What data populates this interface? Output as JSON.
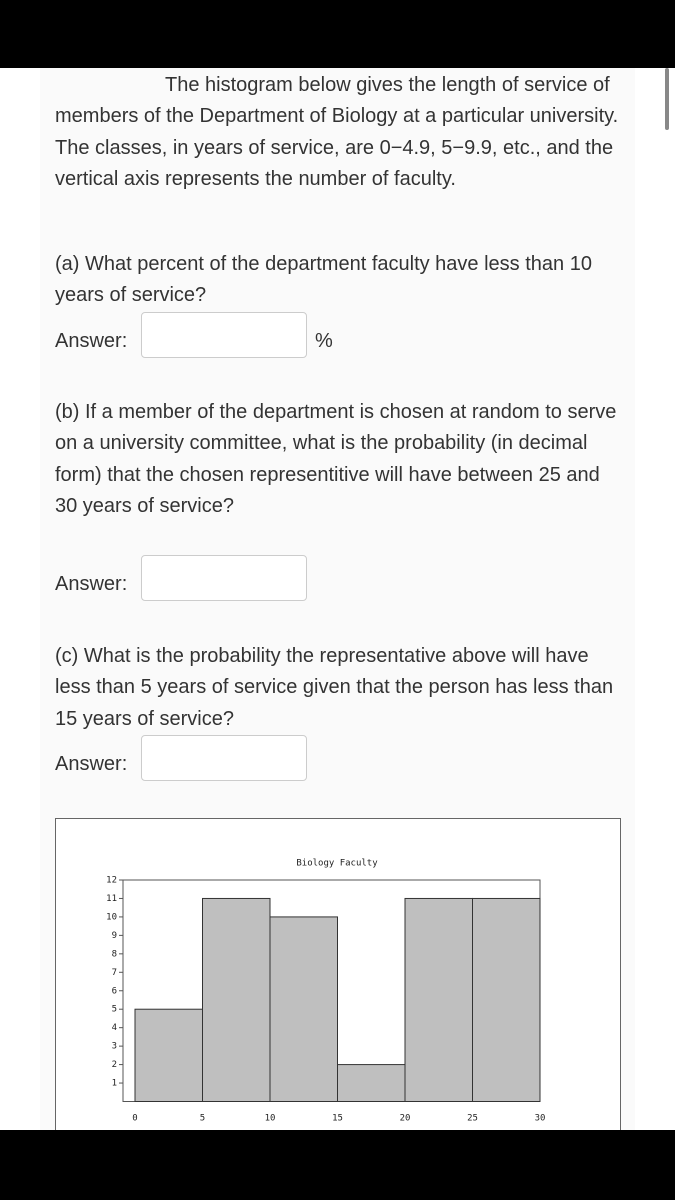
{
  "intro": "The histogram below gives the length of service of members of the Department of Biology at a particular university. The classes, in years of service, are 0−4.9, 5−9.9, etc., and the vertical axis represents the number of faculty.",
  "questions": [
    {
      "text": "(a) What percent of the department faculty have less than 10 years of service?",
      "answer_label": "Answer:",
      "unit": "%"
    },
    {
      "text": "(b) If a member of the department is chosen at random to serve on a university committee, what is the probability (in decimal form) that the chosen representitive will have between 25 and 30 years of service?",
      "answer_label": "Answer:"
    },
    {
      "text": "(c) What is the probability the representative above will have less than 5 years of service given that the person has less than 15 years of service?",
      "answer_label": "Answer:"
    }
  ],
  "chart_data": {
    "type": "histogram",
    "title": "Biology Faculty",
    "bins": [
      0,
      5,
      10,
      15,
      20,
      25,
      30
    ],
    "values": [
      5,
      11,
      10,
      2,
      11,
      11
    ],
    "color": "#bfbfbf",
    "xlim": [
      0,
      30
    ],
    "xticks": [
      0,
      5,
      10,
      15,
      20,
      25,
      30
    ],
    "ylim": [
      0,
      12
    ],
    "yticks": [
      1,
      2,
      3,
      4,
      5,
      6,
      7,
      8,
      9,
      10,
      11,
      12
    ]
  }
}
